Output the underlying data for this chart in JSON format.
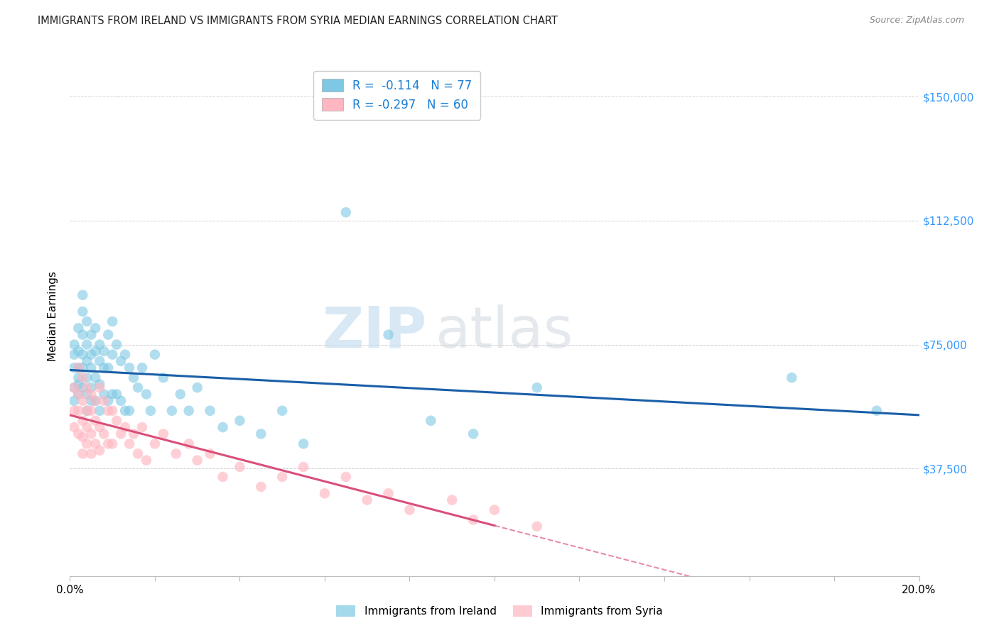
{
  "title": "IMMIGRANTS FROM IRELAND VS IMMIGRANTS FROM SYRIA MEDIAN EARNINGS CORRELATION CHART",
  "source": "Source: ZipAtlas.com",
  "ylabel": "Median Earnings",
  "ytick_labels": [
    "$150,000",
    "$112,500",
    "$75,000",
    "$37,500"
  ],
  "ytick_values": [
    150000,
    112500,
    75000,
    37500
  ],
  "xmin": 0.0,
  "xmax": 0.2,
  "ymin": 5000,
  "ymax": 162000,
  "ireland_R": -0.114,
  "ireland_N": 77,
  "syria_R": -0.297,
  "syria_N": 60,
  "ireland_color": "#7ec8e3",
  "syria_color": "#ffb6c1",
  "ireland_line_color": "#1a5fa8",
  "syria_line_color": "#d94f7a",
  "legend_ireland": "Immigrants from Ireland",
  "legend_syria": "Immigrants from Syria",
  "watermark_zip": "ZIP",
  "watermark_atlas": "atlas",
  "ireland_intercept": 67500,
  "ireland_slope": -45000,
  "syria_intercept": 61000,
  "syria_slope": -180000,
  "ireland_x": [
    0.001,
    0.001,
    0.001,
    0.001,
    0.001,
    0.002,
    0.002,
    0.002,
    0.002,
    0.002,
    0.002,
    0.003,
    0.003,
    0.003,
    0.003,
    0.003,
    0.003,
    0.004,
    0.004,
    0.004,
    0.004,
    0.004,
    0.004,
    0.005,
    0.005,
    0.005,
    0.005,
    0.005,
    0.006,
    0.006,
    0.006,
    0.006,
    0.007,
    0.007,
    0.007,
    0.007,
    0.008,
    0.008,
    0.008,
    0.009,
    0.009,
    0.009,
    0.01,
    0.01,
    0.01,
    0.011,
    0.011,
    0.012,
    0.012,
    0.013,
    0.013,
    0.014,
    0.014,
    0.015,
    0.016,
    0.017,
    0.018,
    0.019,
    0.02,
    0.022,
    0.024,
    0.026,
    0.028,
    0.03,
    0.033,
    0.036,
    0.04,
    0.045,
    0.05,
    0.055,
    0.065,
    0.075,
    0.085,
    0.095,
    0.11,
    0.17,
    0.19
  ],
  "ireland_y": [
    75000,
    68000,
    72000,
    62000,
    58000,
    80000,
    73000,
    68000,
    65000,
    63000,
    60000,
    90000,
    85000,
    78000,
    72000,
    68000,
    62000,
    82000,
    75000,
    70000,
    65000,
    60000,
    55000,
    78000,
    72000,
    68000,
    62000,
    58000,
    80000,
    73000,
    65000,
    58000,
    75000,
    70000,
    63000,
    55000,
    73000,
    68000,
    60000,
    78000,
    68000,
    58000,
    82000,
    72000,
    60000,
    75000,
    60000,
    70000,
    58000,
    72000,
    55000,
    68000,
    55000,
    65000,
    62000,
    68000,
    60000,
    55000,
    72000,
    65000,
    55000,
    60000,
    55000,
    62000,
    55000,
    50000,
    52000,
    48000,
    55000,
    45000,
    115000,
    78000,
    52000,
    48000,
    62000,
    65000,
    55000
  ],
  "syria_x": [
    0.001,
    0.001,
    0.001,
    0.002,
    0.002,
    0.002,
    0.002,
    0.003,
    0.003,
    0.003,
    0.003,
    0.003,
    0.004,
    0.004,
    0.004,
    0.004,
    0.005,
    0.005,
    0.005,
    0.005,
    0.006,
    0.006,
    0.006,
    0.007,
    0.007,
    0.007,
    0.008,
    0.008,
    0.009,
    0.009,
    0.01,
    0.01,
    0.011,
    0.012,
    0.013,
    0.014,
    0.015,
    0.016,
    0.017,
    0.018,
    0.02,
    0.022,
    0.025,
    0.028,
    0.03,
    0.033,
    0.036,
    0.04,
    0.045,
    0.05,
    0.055,
    0.06,
    0.065,
    0.07,
    0.075,
    0.08,
    0.09,
    0.095,
    0.1,
    0.11
  ],
  "syria_y": [
    62000,
    55000,
    50000,
    68000,
    60000,
    55000,
    48000,
    65000,
    58000,
    52000,
    47000,
    42000,
    62000,
    55000,
    50000,
    45000,
    60000,
    55000,
    48000,
    42000,
    58000,
    52000,
    45000,
    62000,
    50000,
    43000,
    58000,
    48000,
    55000,
    45000,
    55000,
    45000,
    52000,
    48000,
    50000,
    45000,
    48000,
    42000,
    50000,
    40000,
    45000,
    48000,
    42000,
    45000,
    40000,
    42000,
    35000,
    38000,
    32000,
    35000,
    38000,
    30000,
    35000,
    28000,
    30000,
    25000,
    28000,
    22000,
    25000,
    20000
  ]
}
